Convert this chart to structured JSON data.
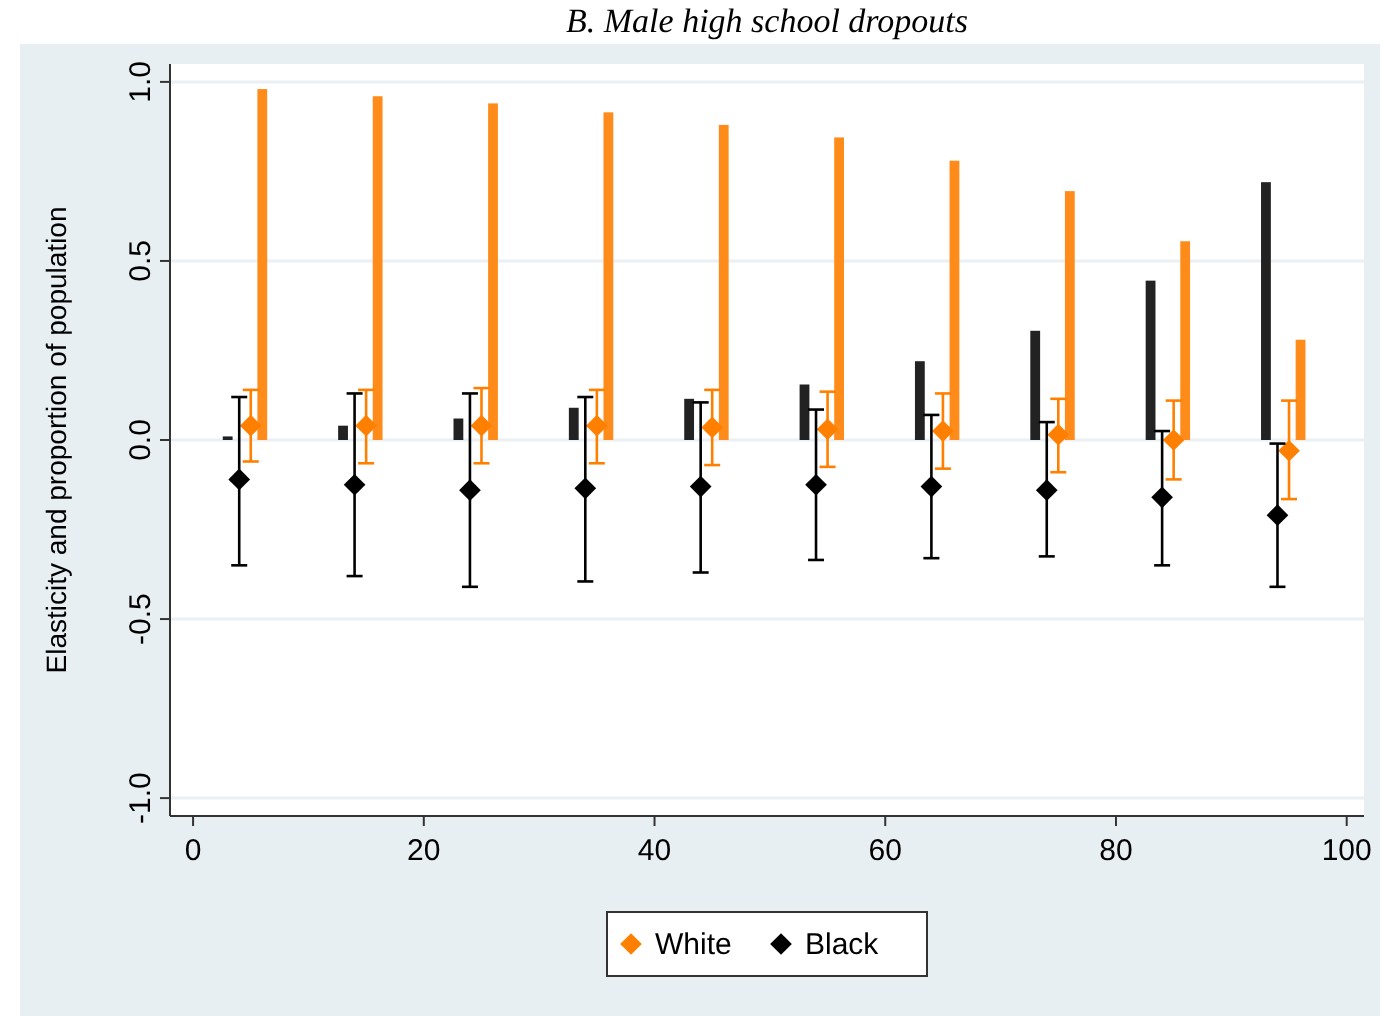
{
  "chart_data": {
    "type": "bar",
    "title": "B. Male high school dropouts",
    "ylabel": "Elasticity and proportion of population",
    "xlim": [
      -2,
      101.5
    ],
    "xticks": [
      0,
      20,
      40,
      60,
      80,
      100
    ],
    "ylim": [
      -1.05,
      1.05
    ],
    "yticks": [
      {
        "value": -1,
        "label": "-1.0"
      },
      {
        "value": -0.5,
        "label": "-0.5"
      },
      {
        "value": 0,
        "label": "0.0"
      },
      {
        "value": 0.5,
        "label": "0.5"
      },
      {
        "value": 1,
        "label": "1.0"
      }
    ],
    "grid": "y",
    "legend": "bottom",
    "marker": "diamond",
    "series": [
      {
        "color": "#222222",
        "x": [
          3,
          13,
          23,
          33,
          43,
          53,
          63,
          73,
          83,
          93
        ],
        "values": [
          0.01,
          0.04,
          0.06,
          0.09,
          0.115,
          0.155,
          0.22,
          0.305,
          0.445,
          0.72
        ]
      },
      {
        "color": "#ff8c1a",
        "x": [
          6,
          16,
          26,
          36,
          46,
          56,
          66,
          76,
          86,
          96
        ],
        "values": [
          0.98,
          0.96,
          0.94,
          0.915,
          0.88,
          0.845,
          0.78,
          0.695,
          0.555,
          0.28
        ]
      },
      {
        "type": "scatter",
        "name": "White",
        "color": "#ff8000",
        "x": [
          5,
          15,
          25,
          35,
          45,
          55,
          65,
          75,
          85,
          95
        ],
        "values": [
          0.04,
          0.04,
          0.04,
          0.04,
          0.035,
          0.03,
          0.025,
          0.015,
          0.0,
          -0.03
        ],
        "errors": [
          [
            -0.06,
            0.14
          ],
          [
            -0.065,
            0.14
          ],
          [
            -0.065,
            0.145
          ],
          [
            -0.065,
            0.14
          ],
          [
            -0.07,
            0.14
          ],
          [
            -0.075,
            0.135
          ],
          [
            -0.08,
            0.13
          ],
          [
            -0.09,
            0.115
          ],
          [
            -0.11,
            0.11
          ],
          [
            -0.165,
            0.11
          ]
        ]
      },
      {
        "type": "scatter",
        "name": "Black",
        "color": "#000000",
        "x": [
          4,
          14,
          24,
          34,
          44,
          54,
          64,
          74,
          84,
          94
        ],
        "values": [
          -0.11,
          -0.125,
          -0.14,
          -0.135,
          -0.13,
          -0.125,
          -0.13,
          -0.14,
          -0.16,
          -0.21
        ],
        "errors": [
          [
            -0.35,
            0.12
          ],
          [
            -0.38,
            0.13
          ],
          [
            -0.41,
            0.13
          ],
          [
            -0.395,
            0.12
          ],
          [
            -0.37,
            0.105
          ],
          [
            -0.335,
            0.085
          ],
          [
            -0.33,
            0.07
          ],
          [
            -0.325,
            0.05
          ],
          [
            -0.35,
            0.025
          ],
          [
            -0.41,
            -0.01
          ]
        ]
      }
    ]
  }
}
